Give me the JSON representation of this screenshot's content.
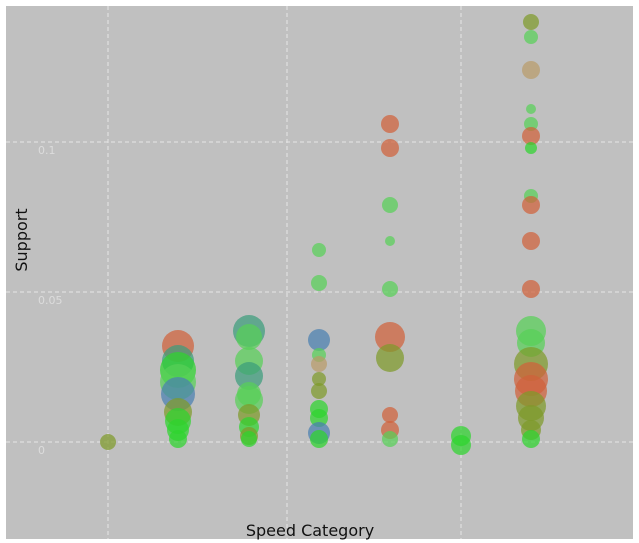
{
  "chart_data": {
    "type": "scatter",
    "xlabel": "Speed Category",
    "ylabel": "Support",
    "x_categories": 7,
    "x_ticks_labeled": false,
    "ylim": [
      -0.02,
      0.145
    ],
    "y_ticks": [
      0,
      0.05,
      0.1
    ],
    "y_tick_labels": [
      "0",
      "0.05",
      "0.1"
    ],
    "grid": true,
    "legend": "none",
    "colors": {
      "background": "#c0c0c0",
      "grid": "#e6e6e6",
      "red": "#d0613a",
      "green": "#2ed42e",
      "olive": "#7e9a2a",
      "teal": "#3c9c7c",
      "blue": "#4a7fb0",
      "tan": "#b99b6a",
      "lightgreen": "#58d058"
    },
    "points": [
      {
        "x": 1,
        "y": 0.0,
        "size": 8,
        "color": "olive"
      },
      {
        "x": 2,
        "y": 0.032,
        "size": 16,
        "color": "red"
      },
      {
        "x": 2,
        "y": 0.027,
        "size": 16,
        "color": "teal"
      },
      {
        "x": 2,
        "y": 0.024,
        "size": 18,
        "color": "green"
      },
      {
        "x": 2,
        "y": 0.02,
        "size": 18,
        "color": "lightgreen"
      },
      {
        "x": 2,
        "y": 0.016,
        "size": 17,
        "color": "blue"
      },
      {
        "x": 2,
        "y": 0.01,
        "size": 14,
        "color": "olive"
      },
      {
        "x": 2,
        "y": 0.007,
        "size": 13,
        "color": "green"
      },
      {
        "x": 2,
        "y": 0.004,
        "size": 11,
        "color": "green"
      },
      {
        "x": 2,
        "y": 0.001,
        "size": 9,
        "color": "green"
      },
      {
        "x": 3,
        "y": 0.037,
        "size": 16,
        "color": "teal"
      },
      {
        "x": 3,
        "y": 0.035,
        "size": 13,
        "color": "lightgreen"
      },
      {
        "x": 3,
        "y": 0.027,
        "size": 14,
        "color": "lightgreen"
      },
      {
        "x": 3,
        "y": 0.022,
        "size": 14,
        "color": "teal"
      },
      {
        "x": 3,
        "y": 0.016,
        "size": 12,
        "color": "lightgreen"
      },
      {
        "x": 3,
        "y": 0.014,
        "size": 14,
        "color": "lightgreen"
      },
      {
        "x": 3,
        "y": 0.009,
        "size": 11,
        "color": "olive"
      },
      {
        "x": 3,
        "y": 0.005,
        "size": 10,
        "color": "green"
      },
      {
        "x": 3,
        "y": 0.002,
        "size": 9,
        "color": "olive"
      },
      {
        "x": 3,
        "y": 0.001,
        "size": 8,
        "color": "green"
      },
      {
        "x": 4,
        "y": 0.064,
        "size": 7,
        "color": "lightgreen"
      },
      {
        "x": 4,
        "y": 0.053,
        "size": 8,
        "color": "lightgreen"
      },
      {
        "x": 4,
        "y": 0.034,
        "size": 11,
        "color": "blue"
      },
      {
        "x": 4,
        "y": 0.029,
        "size": 7,
        "color": "lightgreen"
      },
      {
        "x": 4,
        "y": 0.026,
        "size": 8,
        "color": "tan"
      },
      {
        "x": 4,
        "y": 0.021,
        "size": 7,
        "color": "olive"
      },
      {
        "x": 4,
        "y": 0.017,
        "size": 8,
        "color": "olive"
      },
      {
        "x": 4,
        "y": 0.011,
        "size": 9,
        "color": "green"
      },
      {
        "x": 4,
        "y": 0.008,
        "size": 9,
        "color": "green"
      },
      {
        "x": 4,
        "y": 0.003,
        "size": 11,
        "color": "blue"
      },
      {
        "x": 4,
        "y": 0.001,
        "size": 9,
        "color": "green"
      },
      {
        "x": 5,
        "y": 0.106,
        "size": 9,
        "color": "red"
      },
      {
        "x": 5,
        "y": 0.098,
        "size": 9,
        "color": "red"
      },
      {
        "x": 5,
        "y": 0.079,
        "size": 8,
        "color": "lightgreen"
      },
      {
        "x": 5,
        "y": 0.067,
        "size": 5,
        "color": "lightgreen"
      },
      {
        "x": 5,
        "y": 0.051,
        "size": 8,
        "color": "lightgreen"
      },
      {
        "x": 5,
        "y": 0.035,
        "size": 15,
        "color": "red"
      },
      {
        "x": 5,
        "y": 0.028,
        "size": 14,
        "color": "olive"
      },
      {
        "x": 5,
        "y": 0.009,
        "size": 8,
        "color": "red"
      },
      {
        "x": 5,
        "y": 0.004,
        "size": 9,
        "color": "red"
      },
      {
        "x": 5,
        "y": 0.001,
        "size": 8,
        "color": "lightgreen"
      },
      {
        "x": 6,
        "y": 0.002,
        "size": 10,
        "color": "green"
      },
      {
        "x": 6,
        "y": -0.001,
        "size": 10,
        "color": "green"
      },
      {
        "x": 7,
        "y": 0.14,
        "size": 8,
        "color": "olive"
      },
      {
        "x": 7,
        "y": 0.135,
        "size": 7,
        "color": "lightgreen"
      },
      {
        "x": 7,
        "y": 0.124,
        "size": 9,
        "color": "tan"
      },
      {
        "x": 7,
        "y": 0.111,
        "size": 5,
        "color": "lightgreen"
      },
      {
        "x": 7,
        "y": 0.106,
        "size": 7,
        "color": "lightgreen"
      },
      {
        "x": 7,
        "y": 0.102,
        "size": 9,
        "color": "red"
      },
      {
        "x": 7,
        "y": 0.098,
        "size": 6,
        "color": "green"
      },
      {
        "x": 7,
        "y": 0.082,
        "size": 7,
        "color": "lightgreen"
      },
      {
        "x": 7,
        "y": 0.079,
        "size": 9,
        "color": "red"
      },
      {
        "x": 7,
        "y": 0.067,
        "size": 9,
        "color": "red"
      },
      {
        "x": 7,
        "y": 0.051,
        "size": 9,
        "color": "red"
      },
      {
        "x": 7,
        "y": 0.037,
        "size": 15,
        "color": "lightgreen"
      },
      {
        "x": 7,
        "y": 0.033,
        "size": 14,
        "color": "lightgreen"
      },
      {
        "x": 7,
        "y": 0.026,
        "size": 17,
        "color": "olive"
      },
      {
        "x": 7,
        "y": 0.021,
        "size": 17,
        "color": "red"
      },
      {
        "x": 7,
        "y": 0.017,
        "size": 16,
        "color": "red"
      },
      {
        "x": 7,
        "y": 0.012,
        "size": 15,
        "color": "olive"
      },
      {
        "x": 7,
        "y": 0.008,
        "size": 13,
        "color": "olive"
      },
      {
        "x": 7,
        "y": 0.004,
        "size": 10,
        "color": "olive"
      },
      {
        "x": 7,
        "y": 0.001,
        "size": 9,
        "color": "green"
      }
    ]
  }
}
